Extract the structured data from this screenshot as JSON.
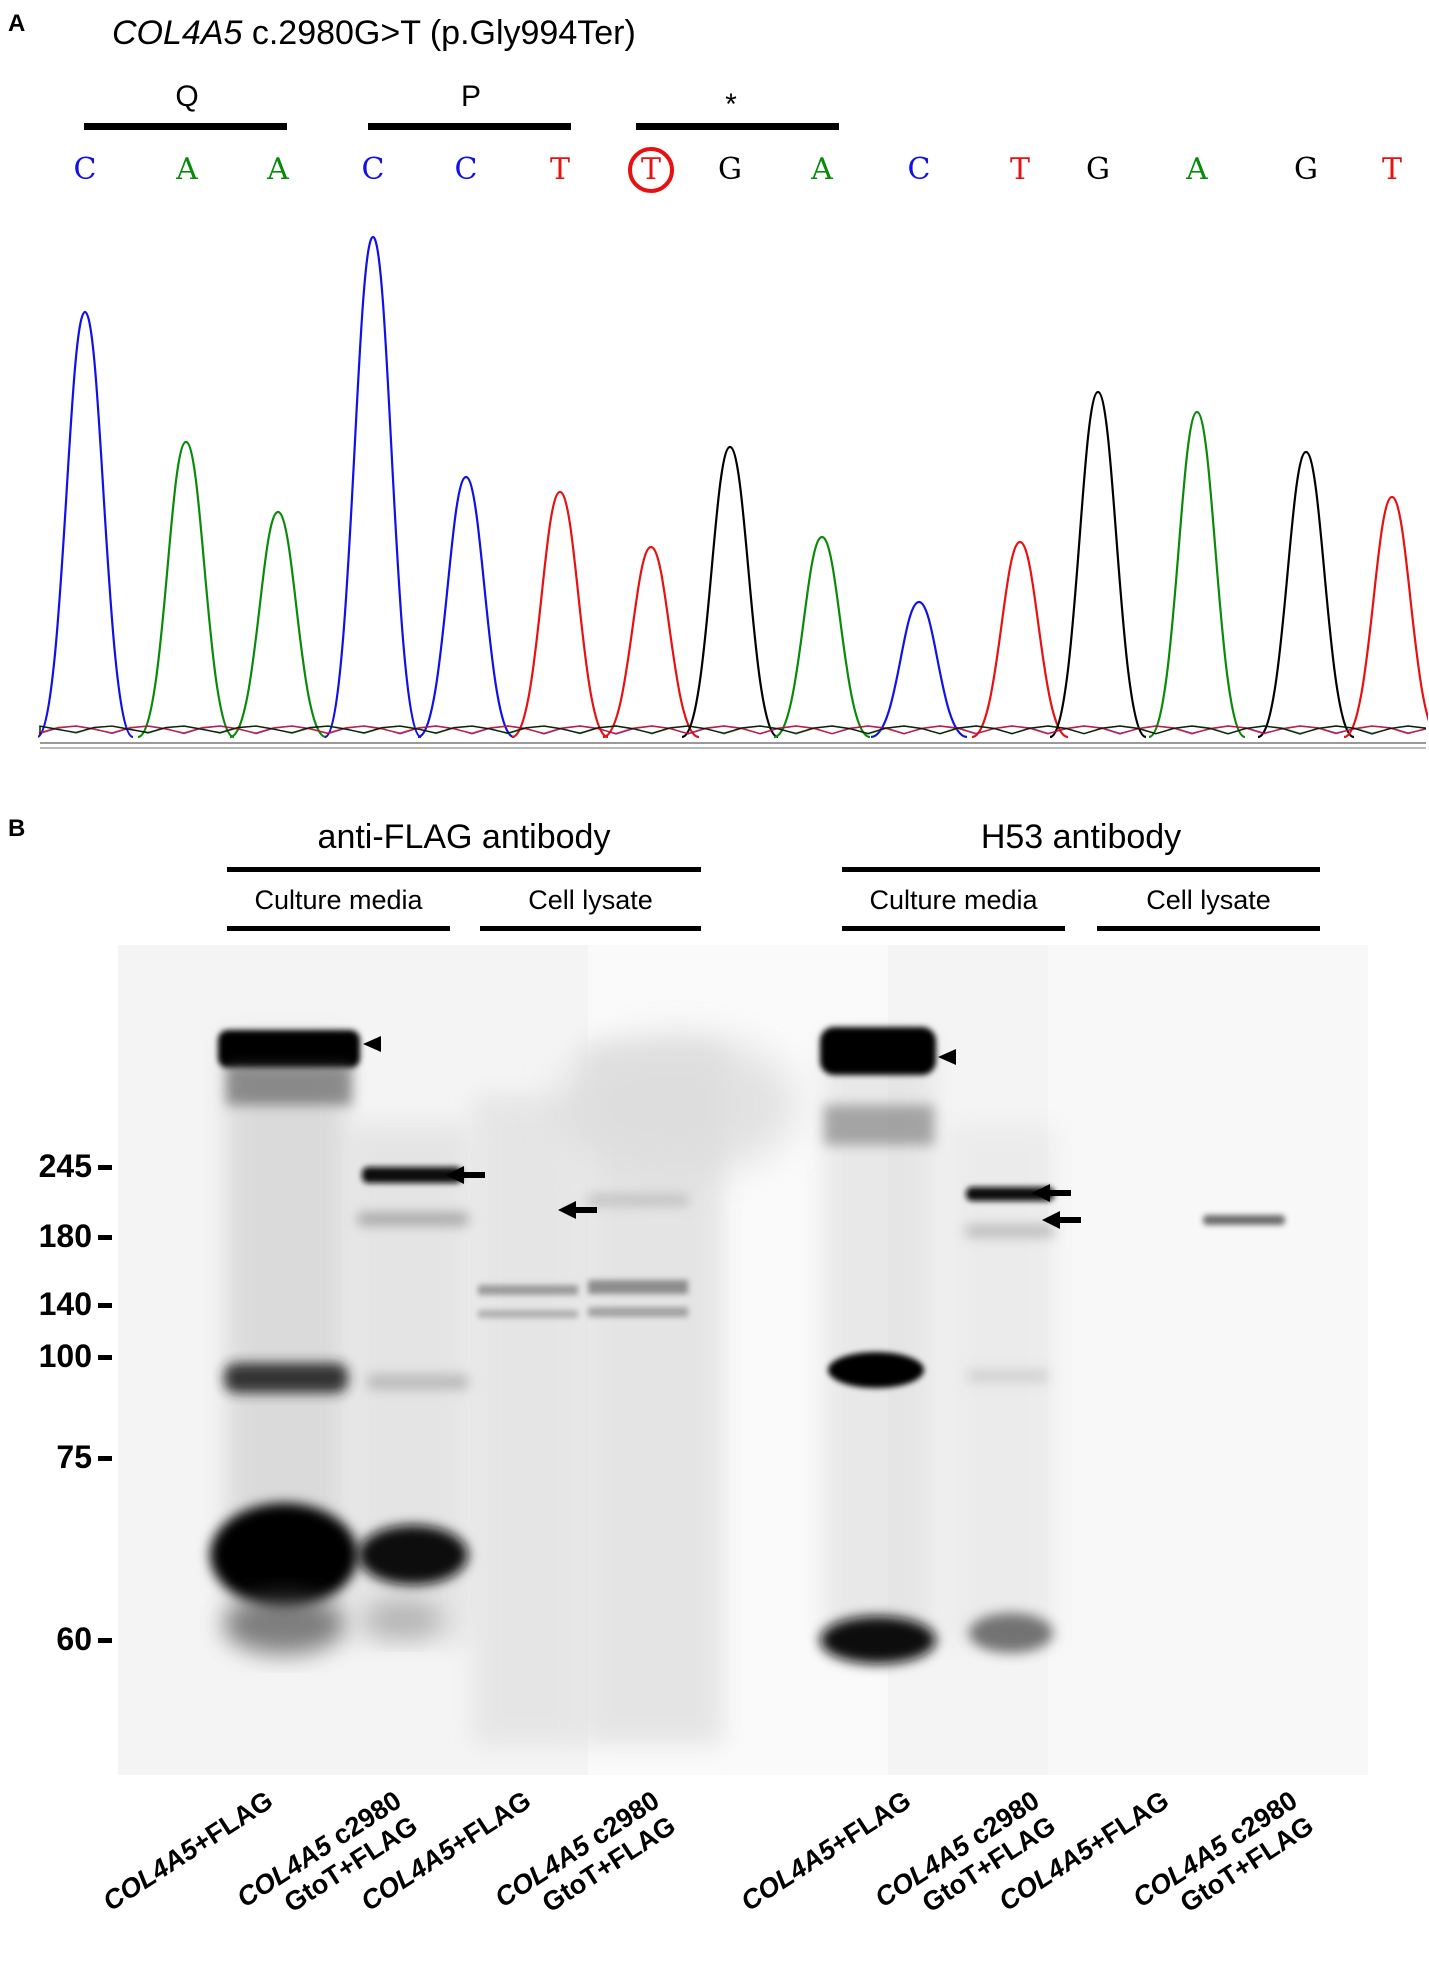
{
  "panel_a": {
    "letter": "A",
    "title_gene": "COL4A5",
    "title_rest": " c.2980G>T (p.Gly994Ter)",
    "codons": [
      "Q",
      "P",
      "*"
    ],
    "bases": [
      {
        "b": "C",
        "color": "blue"
      },
      {
        "b": "A",
        "color": "green"
      },
      {
        "b": "A",
        "color": "green"
      },
      {
        "b": "C",
        "color": "blue"
      },
      {
        "b": "C",
        "color": "blue"
      },
      {
        "b": "T",
        "color": "red"
      },
      {
        "b": "T",
        "color": "red",
        "mutation": true
      },
      {
        "b": "G",
        "color": "black"
      },
      {
        "b": "A",
        "color": "green"
      },
      {
        "b": "C",
        "color": "blue"
      },
      {
        "b": "T",
        "color": "red"
      },
      {
        "b": "G",
        "color": "black"
      },
      {
        "b": "A",
        "color": "green"
      },
      {
        "b": "G",
        "color": "black"
      },
      {
        "b": "T",
        "color": "red"
      }
    ],
    "trace_colors": {
      "C": "#1010e8",
      "A": "#0a8a0a",
      "T": "#e81010",
      "G": "#000000"
    },
    "peaks": [
      {
        "b": "C",
        "h": 0.85
      },
      {
        "b": "A",
        "h": 0.59
      },
      {
        "b": "A",
        "h": 0.45
      },
      {
        "b": "C",
        "h": 1.0
      },
      {
        "b": "C",
        "h": 0.52
      },
      {
        "b": "T",
        "h": 0.49
      },
      {
        "b": "T",
        "h": 0.38
      },
      {
        "b": "G",
        "h": 0.58
      },
      {
        "b": "A",
        "h": 0.4
      },
      {
        "b": "C",
        "h": 0.27
      },
      {
        "b": "T",
        "h": 0.39
      },
      {
        "b": "G",
        "h": 0.69
      },
      {
        "b": "A",
        "h": 0.65
      },
      {
        "b": "G",
        "h": 0.57
      },
      {
        "b": "T",
        "h": 0.48
      }
    ]
  },
  "panel_b": {
    "letter": "B",
    "antibodies": [
      "anti-FLAG antibody",
      "H53 antibody"
    ],
    "fractions": [
      "Culture media",
      "Cell lysate",
      "Culture media",
      "Cell lysate"
    ],
    "mw_markers": [
      "245",
      "180",
      "140",
      "100",
      "75",
      "60"
    ],
    "lanes": [
      {
        "gene": "COL4A5",
        "rest": "+FLAG",
        "line2": ""
      },
      {
        "gene": "COL4A5",
        "rest": " c2980",
        "line2": "GtoT+FLAG"
      },
      {
        "gene": "COL4A5",
        "rest": "+FLAG",
        "line2": ""
      },
      {
        "gene": "COL4A5",
        "rest": " c2980",
        "line2": "GtoT+FLAG"
      },
      {
        "gene": "COL4A5",
        "rest": "+FLAG",
        "line2": ""
      },
      {
        "gene": "COL4A5",
        "rest": " c2980",
        "line2": "GtoT+FLAG"
      },
      {
        "gene": "COL4A5",
        "rest": "+FLAG",
        "line2": ""
      },
      {
        "gene": "COL4A5",
        "rest": " c2980",
        "line2": "GtoT+FLAG"
      }
    ]
  }
}
